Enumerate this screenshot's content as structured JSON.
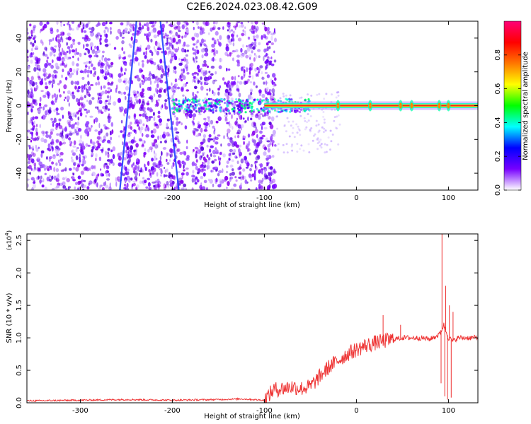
{
  "figure": {
    "title": "C2E6.2024.023.08.42.G09"
  },
  "chart_data": [
    {
      "type": "heatmap",
      "xlabel": "Height of straight line (km)",
      "ylabel": "Frequency (Hz)",
      "xlim": [
        -358,
        132
      ],
      "ylim": [
        -50,
        50
      ],
      "xticks": [
        -300,
        -200,
        -100,
        0,
        100
      ],
      "yticks": [
        -40,
        -20,
        0,
        20,
        40
      ],
      "xtick_labels": [
        "-300",
        "-200",
        "-100",
        "0",
        "100"
      ],
      "ytick_labels": [
        "-40",
        "-20",
        "0",
        "20",
        "40"
      ],
      "colorbar": {
        "label": "Normalized spectral amplitude",
        "range": [
          0,
          1
        ],
        "ticks": [
          0.0,
          0.2,
          0.4,
          0.6,
          0.8
        ],
        "tick_labels": [
          "0.0",
          "0.2",
          "0.4",
          "0.6",
          "0.8"
        ],
        "colormap": [
          "#ffffff",
          "#7700ff",
          "#0000ff",
          "#00ffff",
          "#00ff00",
          "#ffff00",
          "#ff7700",
          "#ff0000",
          "#ff0077"
        ]
      },
      "noise_region_x": [
        -358,
        -88
      ],
      "carrier": {
        "frequency_hz": 0,
        "x_start": -100,
        "x_end": 132,
        "peak_points": [
          -20,
          15,
          48,
          60,
          90,
          100
        ]
      },
      "streaks": [
        {
          "x_at_f0": -248,
          "slope_km_per_hz": 0.18
        },
        {
          "x_at_f0": -203,
          "slope_km_per_hz": -0.2
        }
      ]
    },
    {
      "type": "line",
      "xlabel": "Height of straight line (km)",
      "ylabel": "SNR (10 * v/v)",
      "y_multiplier_label": "(x10",
      "y_multiplier_exponent": "4",
      "y_multiplier_close": ")",
      "xlim": [
        -358,
        132
      ],
      "ylim": [
        0,
        2.6
      ],
      "xticks": [
        -300,
        -200,
        -100,
        0,
        100
      ],
      "yticks": [
        0.0,
        0.5,
        1.0,
        1.5,
        2.0,
        2.5
      ],
      "xtick_labels": [
        "-300",
        "-200",
        "-100",
        "0",
        "100"
      ],
      "ytick_labels": [
        "0.0",
        "0.5",
        "1.0",
        "1.5",
        "2.0",
        "2.5"
      ],
      "line_color": "#ee3333",
      "series": [
        {
          "x": [
            -358,
            -300,
            -250,
            -200,
            -150,
            -125,
            -100,
            -90,
            -80,
            -70,
            -60,
            -50,
            -40,
            -30,
            -20,
            -10,
            0,
            10,
            20,
            30,
            40,
            50,
            60,
            70,
            80,
            90,
            95,
            100,
            105,
            110,
            132
          ],
          "y": [
            0.03,
            0.04,
            0.05,
            0.04,
            0.05,
            0.06,
            0.04,
            0.2,
            0.22,
            0.25,
            0.22,
            0.25,
            0.4,
            0.55,
            0.65,
            0.75,
            0.82,
            0.88,
            0.92,
            0.95,
            0.98,
            1.0,
            1.0,
            1.0,
            0.98,
            1.05,
            1.2,
            1.0,
            0.95,
            1.0,
            1.0
          ]
        }
      ],
      "spikes": [
        {
          "x": 29,
          "y": 1.35
        },
        {
          "x": 48,
          "y": 1.2
        },
        {
          "x": 93,
          "y": 2.6
        },
        {
          "x": 97,
          "y": 1.8
        },
        {
          "x": 101,
          "y": 1.5
        },
        {
          "x": 105,
          "y": 1.4
        }
      ],
      "dips": [
        {
          "x": 92,
          "y": 0.3
        },
        {
          "x": 96,
          "y": 0.1
        },
        {
          "x": 99,
          "y": 0.05
        },
        {
          "x": 103,
          "y": 0.08
        }
      ]
    }
  ]
}
